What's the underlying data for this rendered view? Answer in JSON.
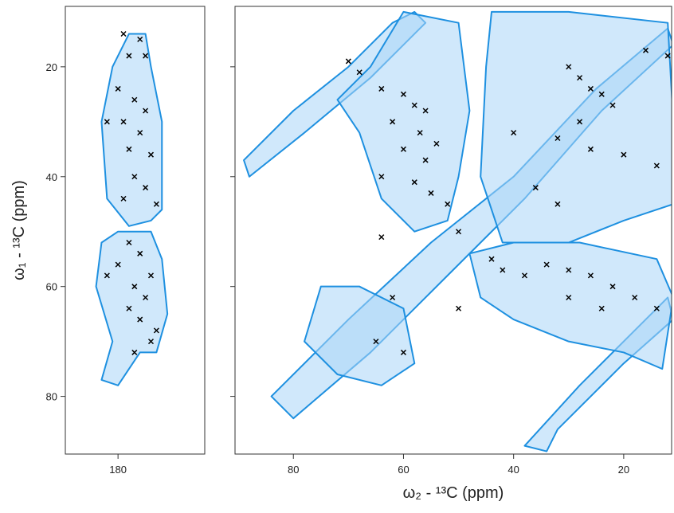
{
  "chart_data": [
    {
      "type": "contour",
      "ylabel": "ω₁ - ¹³C (ppm)",
      "xlim": [
        189.6,
        164.2
      ],
      "xticks": [
        180
      ],
      "ylim": [
        9,
        90.5
      ],
      "yticks": [
        20,
        40,
        60,
        80
      ],
      "ytick_labels": true,
      "contour_color": "#1e90e0",
      "contours": [
        {
          "x": [
            178,
            175,
            174,
            172,
            172,
            174,
            178,
            182,
            183,
            181
          ],
          "y": [
            14,
            14,
            20,
            30,
            46,
            48,
            49,
            44,
            30,
            20
          ]
        },
        {
          "x": [
            180,
            174,
            172,
            171,
            173,
            176,
            180,
            183,
            181,
            184,
            183
          ],
          "y": [
            50,
            50,
            55,
            65,
            72,
            72,
            78,
            77,
            70,
            60,
            52
          ]
        }
      ],
      "peak_color": "#000000",
      "peaks": {
        "x": [
          179,
          176,
          178,
          175,
          180,
          177,
          175,
          179,
          176,
          178,
          174,
          182,
          177,
          175,
          179,
          173,
          178,
          176,
          180,
          174,
          177,
          182,
          175,
          178,
          176,
          174,
          177,
          173
        ],
        "y": [
          14,
          15,
          18,
          18,
          24,
          26,
          28,
          30,
          32,
          35,
          36,
          30,
          40,
          42,
          44,
          45,
          52,
          54,
          56,
          58,
          60,
          58,
          62,
          64,
          66,
          70,
          72,
          68
        ]
      }
    },
    {
      "type": "contour",
      "xlabel": "ω₂ - ¹³C (ppm)",
      "xlim": [
        90.6,
        11.3
      ],
      "xticks": [
        80,
        60,
        40,
        20
      ],
      "ylim": [
        9,
        90.5
      ],
      "yticks": [
        20,
        40,
        60,
        80
      ],
      "ytick_labels": false,
      "contour_color": "#1e90e0",
      "contours": [
        {
          "x": [
            89,
            80,
            70,
            62,
            58,
            56,
            66,
            78,
            88
          ],
          "y": [
            37,
            28,
            20,
            12,
            10,
            12,
            22,
            32,
            40
          ]
        },
        {
          "x": [
            84,
            70,
            55,
            40,
            25,
            12,
            11,
            24,
            38,
            52,
            66,
            80
          ],
          "y": [
            80,
            66,
            52,
            40,
            24,
            13,
            16,
            28,
            44,
            58,
            72,
            84
          ]
        },
        {
          "x": [
            38,
            28,
            18,
            12,
            11,
            20,
            32,
            34
          ],
          "y": [
            89,
            78,
            68,
            62,
            66,
            74,
            86,
            90
          ]
        },
        {
          "x": [
            66,
            60,
            50,
            48,
            50,
            52,
            58,
            64,
            68,
            72
          ],
          "y": [
            20,
            10,
            12,
            28,
            40,
            48,
            50,
            44,
            32,
            26
          ]
        },
        {
          "x": [
            44,
            30,
            12,
            11,
            11,
            20,
            30,
            42,
            46,
            45
          ],
          "y": [
            10,
            10,
            12,
            30,
            45,
            48,
            52,
            52,
            40,
            20
          ]
        },
        {
          "x": [
            48,
            40,
            28,
            14,
            11,
            13,
            20,
            30,
            40,
            46
          ],
          "y": [
            54,
            52,
            52,
            55,
            62,
            75,
            72,
            70,
            66,
            62
          ]
        },
        {
          "x": [
            75,
            68,
            60,
            58,
            64,
            72,
            78
          ],
          "y": [
            60,
            60,
            64,
            74,
            78,
            76,
            70
          ]
        }
      ],
      "peak_color": "#000000",
      "peaks": {
        "x": [
          70,
          68,
          64,
          60,
          58,
          56,
          62,
          57,
          54,
          60,
          56,
          58,
          55,
          52,
          64,
          30,
          28,
          26,
          24,
          22,
          28,
          32,
          26,
          20,
          14,
          36,
          32,
          40,
          44,
          42,
          38,
          34,
          30,
          26,
          22,
          18,
          14,
          24,
          30,
          62,
          65,
          60,
          50,
          12,
          16,
          50,
          64
        ],
        "y": [
          19,
          21,
          24,
          25,
          27,
          28,
          30,
          32,
          34,
          35,
          37,
          41,
          43,
          45,
          40,
          20,
          22,
          24,
          25,
          27,
          30,
          33,
          35,
          36,
          38,
          42,
          45,
          32,
          55,
          57,
          58,
          56,
          57,
          58,
          60,
          62,
          64,
          64,
          62,
          62,
          70,
          72,
          64,
          18,
          17,
          50,
          51
        ]
      }
    }
  ]
}
